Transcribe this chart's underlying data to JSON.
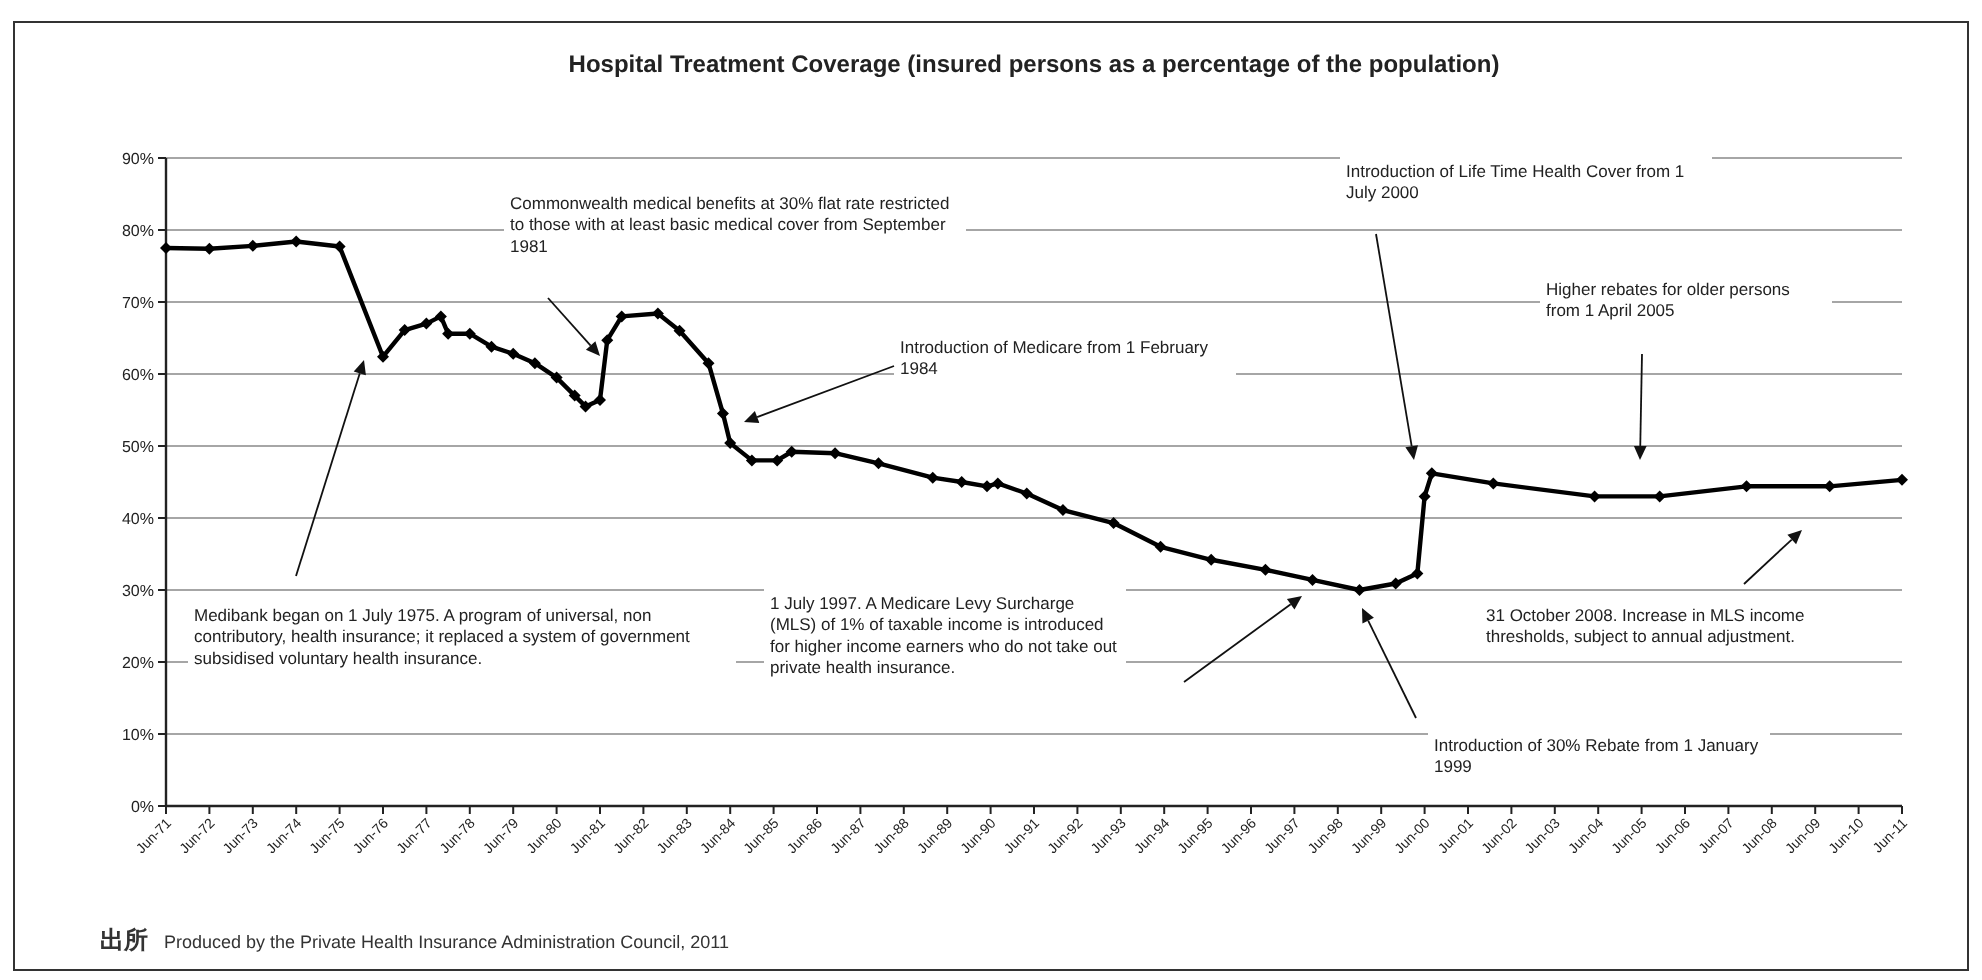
{
  "chart_data": {
    "type": "line",
    "title": "Hospital Treatment Coverage (insured persons as a percentage of the population)",
    "x": [
      "1971-06",
      "1972-06",
      "1973-06",
      "1974-06",
      "1975-06",
      "1976-06",
      "1976-12",
      "1977-06",
      "1977-10",
      "1977-12",
      "1978-06",
      "1978-12",
      "1979-06",
      "1979-12",
      "1980-06",
      "1980-11",
      "1981-02",
      "1981-06",
      "1981-08",
      "1981-12",
      "1982-10",
      "1983-04",
      "1983-12",
      "1984-04",
      "1984-06",
      "1984-12",
      "1985-07",
      "1985-11",
      "1986-11",
      "1987-11",
      "1989-02",
      "1989-10",
      "1990-05",
      "1990-08",
      "1991-04",
      "1992-02",
      "1993-04",
      "1994-05",
      "1995-07",
      "1996-10",
      "1997-11",
      "1998-12",
      "1999-10",
      "2000-04",
      "2000-06",
      "2000-08",
      "2002-01",
      "2004-05",
      "2005-11",
      "2007-11",
      "2009-10",
      "2011-06"
    ],
    "values": [
      77.5,
      77.4,
      77.8,
      78.4,
      77.7,
      62.4,
      66.1,
      67,
      68,
      65.6,
      65.6,
      63.8,
      62.8,
      61.5,
      59.5,
      57,
      55.5,
      56.4,
      64.7,
      68,
      68.4,
      66,
      61.5,
      54.5,
      50.4,
      48,
      48,
      49.2,
      49,
      47.6,
      45.6,
      45,
      44.4,
      44.8,
      43.4,
      41.1,
      39.3,
      36,
      34.2,
      32.8,
      31.4,
      30,
      30.9,
      32.3,
      43,
      46.2,
      44.8,
      43,
      43,
      44.4,
      44.4,
      45.3
    ],
    "color": "#000000",
    "marker": "diamond",
    "grid": "y",
    "xlim": [
      "1971-06",
      "2011-06"
    ],
    "xticks": [
      {
        "value": "1971-06",
        "label": "Jun-71"
      },
      {
        "value": "1972-06",
        "label": "Jun-72"
      },
      {
        "value": "1973-06",
        "label": "Jun-73"
      },
      {
        "value": "1974-06",
        "label": "Jun-74"
      },
      {
        "value": "1975-06",
        "label": "Jun-75"
      },
      {
        "value": "1976-06",
        "label": "Jun-76"
      },
      {
        "value": "1977-06",
        "label": "Jun-77"
      },
      {
        "value": "1978-06",
        "label": "Jun-78"
      },
      {
        "value": "1979-06",
        "label": "Jun-79"
      },
      {
        "value": "1980-06",
        "label": "Jun-80"
      },
      {
        "value": "1981-06",
        "label": "Jun-81"
      },
      {
        "value": "1982-06",
        "label": "Jun-82"
      },
      {
        "value": "1983-06",
        "label": "Jun-83"
      },
      {
        "value": "1984-06",
        "label": "Jun-84"
      },
      {
        "value": "1985-06",
        "label": "Jun-85"
      },
      {
        "value": "1986-06",
        "label": "Jun-86"
      },
      {
        "value": "1987-06",
        "label": "Jun-87"
      },
      {
        "value": "1988-06",
        "label": "Jun-88"
      },
      {
        "value": "1989-06",
        "label": "Jun-89"
      },
      {
        "value": "1990-06",
        "label": "Jun-90"
      },
      {
        "value": "1991-06",
        "label": "Jun-91"
      },
      {
        "value": "1992-06",
        "label": "Jun-92"
      },
      {
        "value": "1993-06",
        "label": "Jun-93"
      },
      {
        "value": "1994-06",
        "label": "Jun-94"
      },
      {
        "value": "1995-06",
        "label": "Jun-95"
      },
      {
        "value": "1996-06",
        "label": "Jun-96"
      },
      {
        "value": "1997-06",
        "label": "Jun-97"
      },
      {
        "value": "1998-06",
        "label": "Jun-98"
      },
      {
        "value": "1999-06",
        "label": "Jun-99"
      },
      {
        "value": "2000-06",
        "label": "Jun-00"
      },
      {
        "value": "2001-06",
        "label": "Jun-01"
      },
      {
        "value": "2002-06",
        "label": "Jun-02"
      },
      {
        "value": "2003-06",
        "label": "Jun-03"
      },
      {
        "value": "2004-06",
        "label": "Jun-04"
      },
      {
        "value": "2005-06",
        "label": "Jun-05"
      },
      {
        "value": "2006-06",
        "label": "Jun-06"
      },
      {
        "value": "2007-06",
        "label": "Jun-07"
      },
      {
        "value": "2008-06",
        "label": "Jun-08"
      },
      {
        "value": "2009-06",
        "label": "Jun-09"
      },
      {
        "value": "2010-06",
        "label": "Jun-10"
      },
      {
        "value": "2011-06",
        "label": "Jun-11"
      }
    ],
    "ylim": [
      0,
      90
    ],
    "yticks": [
      {
        "value": 0,
        "label": "0%"
      },
      {
        "value": 10,
        "label": "10%"
      },
      {
        "value": 20,
        "label": "20%"
      },
      {
        "value": 30,
        "label": "30%"
      },
      {
        "value": 40,
        "label": "40%"
      },
      {
        "value": 50,
        "label": "50%"
      },
      {
        "value": 60,
        "label": "60%"
      },
      {
        "value": 70,
        "label": "70%"
      },
      {
        "value": 80,
        "label": "80%"
      },
      {
        "value": 90,
        "label": "90%"
      }
    ],
    "annotations": [
      "Medibank began on 1 July 1975.  A program of universal, non contributory, health insurance; it replaced a system of government subsidised voluntary health insurance.",
      "Commonwealth medical benefits at 30% flat rate restricted to those with at least basic medical cover from September 1981",
      "Introduction of Medicare from 1 February 1984",
      "Introduction of Life Time Health Cover from 1 July 2000",
      "Higher rebates for older persons from 1 April 2005",
      "1 July 1997. A Medicare Levy Surcharge (MLS) of 1% of taxable income is introduced for higher income earners who do not take out private health insurance.",
      "Introduction of 30% Rebate from 1 January 1999",
      "31 October 2008. Increase in MLS income thresholds, subject to annual adjustment.",
      "出所 Produced by the Private Health Insurance Administration Council, 2011"
    ]
  }
}
